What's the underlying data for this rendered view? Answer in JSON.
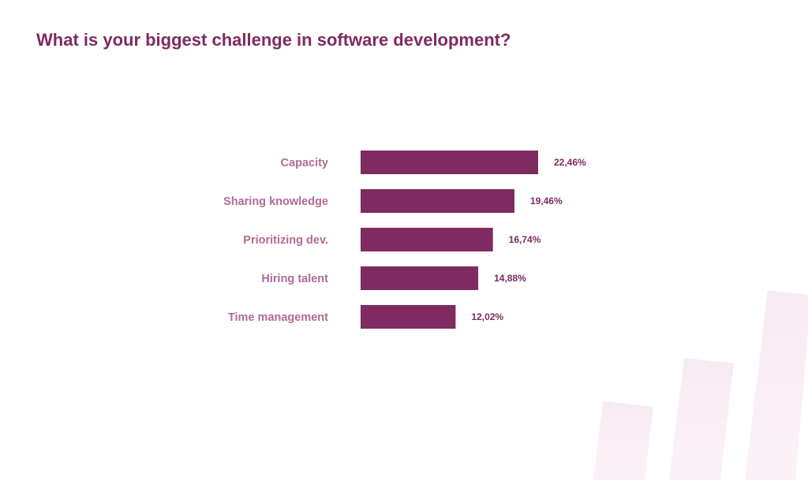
{
  "chart_data": {
    "type": "bar",
    "orientation": "horizontal",
    "title": "What is your biggest challenge in software development?",
    "categories": [
      "Capacity",
      "Sharing knowledge",
      "Prioritizing dev.",
      "Hiring talent",
      "Time management"
    ],
    "values": [
      22.46,
      19.46,
      16.74,
      14.88,
      12.02
    ],
    "value_labels": [
      "22,46%",
      "19,46%",
      "16,74%",
      "14,88%",
      "12,02%"
    ],
    "xlabel": "",
    "ylabel": "",
    "xlim": [
      0,
      25
    ],
    "grid": false,
    "bar_color": "#7f2a61"
  }
}
